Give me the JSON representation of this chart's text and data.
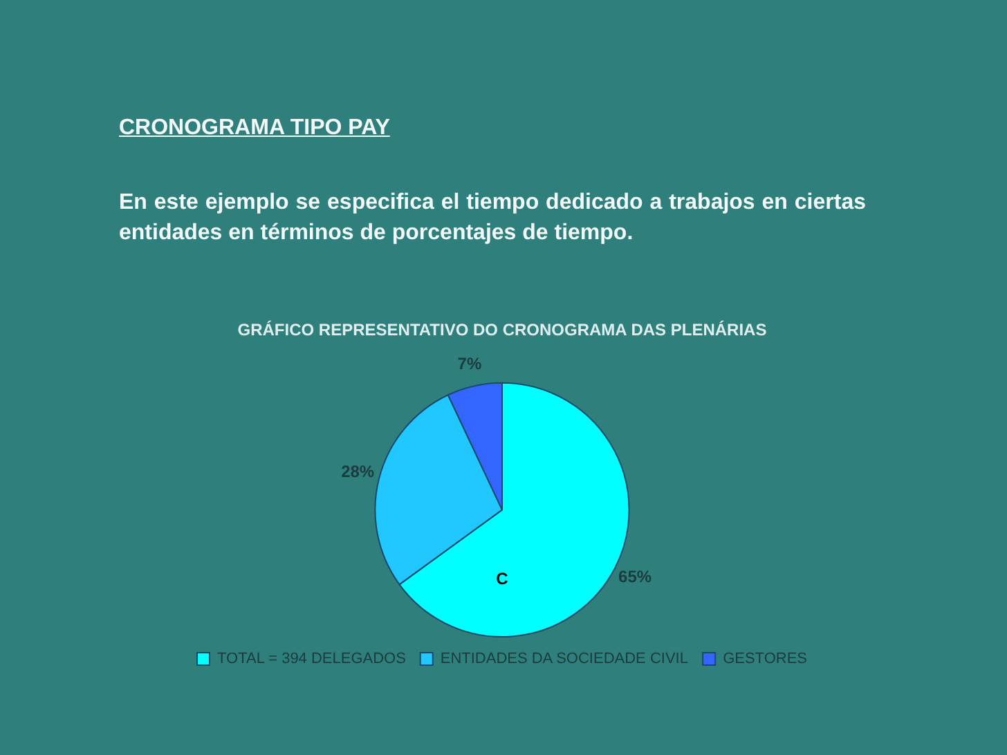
{
  "chart_data": {
    "type": "pie",
    "title": "GRÁFICO REPRESENTATIVO DO CRONOGRAMA DAS PLENÁRIAS",
    "categories": [
      "TOTAL = 394 DELEGADOS",
      "ENTIDADES DA SOCIEDADE CIVIL",
      "GESTORES"
    ],
    "values": [
      65,
      28,
      7
    ],
    "colors": [
      "#00ffff",
      "#20c8ff",
      "#3366ff"
    ],
    "value_labels": [
      "65%",
      "28%",
      "7%"
    ],
    "legend": "bottom",
    "annotations": [
      "CRONOGRAMA TIPO PAY",
      "En este ejemplo se especifica el tiempo dedicado a trabajos en ciertas entidades en términos de porcentajes de tiempo.",
      "C"
    ]
  }
}
